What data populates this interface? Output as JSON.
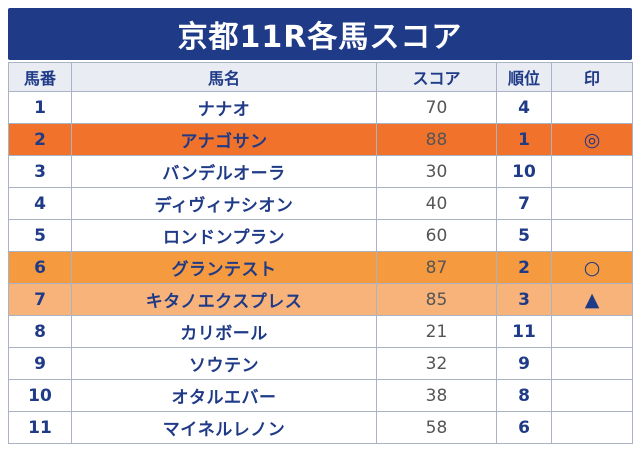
{
  "title": "京都11R各馬スコア",
  "headers": {
    "number": "馬番",
    "name": "馬名",
    "score": "スコア",
    "rank": "順位",
    "mark": "印"
  },
  "rows": [
    {
      "number": "1",
      "name": "ナナオ",
      "score": "70",
      "rank": "4",
      "mark": "",
      "highlight": "none"
    },
    {
      "number": "2",
      "name": "アナゴサン",
      "score": "88",
      "rank": "1",
      "mark": "◎",
      "highlight": "orange"
    },
    {
      "number": "3",
      "name": "バンデルオーラ",
      "score": "30",
      "rank": "10",
      "mark": "",
      "highlight": "none"
    },
    {
      "number": "4",
      "name": "ディヴィナシオン",
      "score": "40",
      "rank": "7",
      "mark": "",
      "highlight": "none"
    },
    {
      "number": "5",
      "name": "ロンドンプラン",
      "score": "60",
      "rank": "5",
      "mark": "",
      "highlight": "none"
    },
    {
      "number": "6",
      "name": "グランテスト",
      "score": "87",
      "rank": "2",
      "mark": "○",
      "highlight": "orange-light"
    },
    {
      "number": "7",
      "name": "キタノエクスプレス",
      "score": "85",
      "rank": "3",
      "mark": "▲",
      "highlight": "peach"
    },
    {
      "number": "8",
      "name": "カリボール",
      "score": "21",
      "rank": "11",
      "mark": "",
      "highlight": "none"
    },
    {
      "number": "9",
      "name": "ソウテン",
      "score": "32",
      "rank": "9",
      "mark": "",
      "highlight": "none"
    },
    {
      "number": "10",
      "name": "オタルエバー",
      "score": "38",
      "rank": "8",
      "mark": "",
      "highlight": "none"
    },
    {
      "number": "11",
      "name": "マイネルレノン",
      "score": "58",
      "rank": "6",
      "mark": "",
      "highlight": "none"
    }
  ],
  "colors": {
    "title_bg": "#1f3a87",
    "header_bg": "#e9edf3",
    "orange": "#f1722b",
    "orange_light": "#f59a3f",
    "peach": "#f7b37a",
    "text_navy": "#1f3a87"
  }
}
